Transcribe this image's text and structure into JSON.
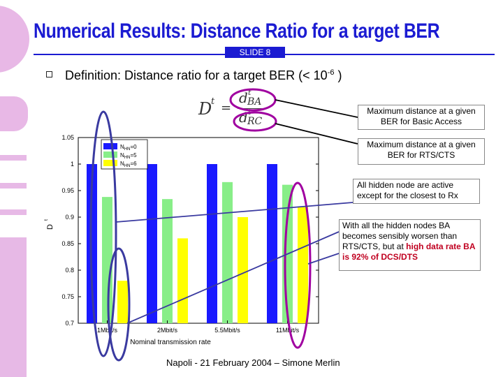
{
  "slide": {
    "title": "Numerical Results: Distance Ratio for a target BER",
    "slide_label": "SLIDE 8",
    "definition_prefix": "Definition: Distance ratio for a target BER (< 10",
    "definition_exponent": "-6",
    "definition_suffix": " )",
    "footer": "Napoli - 21 February 2004 – Simone Merlin"
  },
  "formula": {
    "lhs": "D",
    "lhs_sup": "t",
    "num": "d",
    "num_sup": "t",
    "num_sub": "BA",
    "den": "d",
    "den_sup": "t",
    "den_sub": "RC"
  },
  "callouts": {
    "ba": "Maximum distance at a given BER for Basic Access",
    "rts": "Maximum distance at a given BER for RTS/CTS",
    "hidden_active": "All hidden node are active except for the closest to Rx",
    "all_hidden_1": "With all the hidden nodes BA becomes sensibly worsen than RTS/CTS, but at ",
    "all_hidden_hl": "high data rate BA is 92%  of DCS/DTS"
  },
  "chart_data": {
    "type": "bar",
    "categories": [
      "1Mbit/s",
      "2Mbit/s",
      "5.5Mbit/s",
      "11Mbit/s"
    ],
    "series": [
      {
        "name": "N_HN=0",
        "values": [
          1.0,
          1.0,
          1.0,
          1.0
        ],
        "color": "#1a1aff"
      },
      {
        "name": "N_HN=5",
        "values": [
          0.938,
          0.934,
          0.966,
          0.961
        ],
        "color": "#88ee88"
      },
      {
        "name": "N_HN=6",
        "values": [
          0.78,
          0.86,
          0.9,
          0.92
        ],
        "color": "#ffff00"
      }
    ],
    "xlabel": "Nominal transmission rate",
    "ylabel": "D",
    "ylabel_sup": "t",
    "ylim": [
      0.7,
      1.05
    ],
    "yticks": [
      "0.7",
      "0.75",
      "0.8",
      "0.85",
      "0.9",
      "0.95",
      "1",
      "1.05"
    ],
    "legend": {
      "placement": "top-left",
      "entries": [
        {
          "base": "N",
          "sub": "HN",
          "suffix": "=0"
        },
        {
          "base": "N",
          "sub": "HN",
          "suffix": "=5"
        },
        {
          "base": "N",
          "sub": "HN",
          "suffix": "=6"
        }
      ]
    },
    "grid": false
  }
}
